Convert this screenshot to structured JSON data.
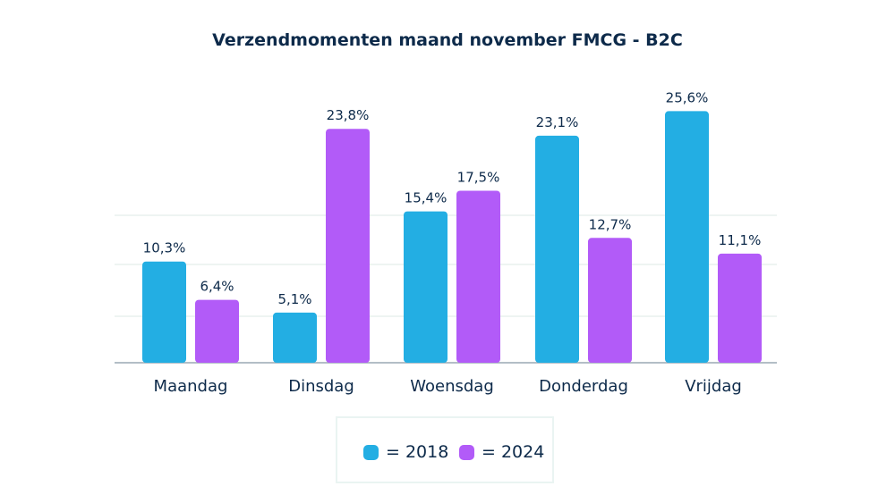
{
  "chart_data": {
    "type": "bar",
    "title": "Verzendmomenten maand november FMCG - B2C",
    "xlabel": "",
    "ylabel": "",
    "ylim": [
      0,
      30
    ],
    "grid": true,
    "legend_position": "bottom",
    "categories": [
      "Maandag",
      "Dinsdag",
      "Woensdag",
      "Donderdag",
      "Vrijdag"
    ],
    "series": [
      {
        "name": "2018",
        "legend_label": "= 2018",
        "color": "#23aee3",
        "values": [
          10.3,
          5.1,
          15.4,
          23.1,
          25.6
        ],
        "labels": [
          "10,3%",
          "5,1%",
          "15,4%",
          "23,1%",
          "25,6%"
        ]
      },
      {
        "name": "2024",
        "legend_label": "= 2024",
        "color": "#b25bf8",
        "values": [
          6.4,
          23.8,
          17.5,
          12.7,
          11.1
        ],
        "labels": [
          "6,4%",
          "23,8%",
          "17,5%",
          "12,7%",
          "11,1%"
        ]
      }
    ]
  }
}
